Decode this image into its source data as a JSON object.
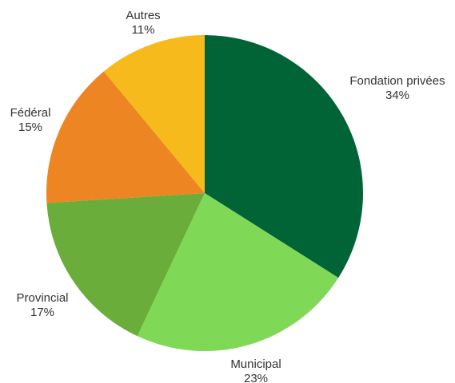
{
  "chart_data": {
    "type": "pie",
    "slices": [
      {
        "label": "Fondation privées",
        "value": 34,
        "value_label": "34%",
        "color": "#006437"
      },
      {
        "label": "Municipal",
        "value": 23,
        "value_label": "23%",
        "color": "#7fd957"
      },
      {
        "label": "Provincial",
        "value": 17,
        "value_label": "17%",
        "color": "#6aad3b"
      },
      {
        "label": "Fédéral",
        "value": 15,
        "value_label": "15%",
        "color": "#ec8522"
      },
      {
        "label": "Autres",
        "value": 11,
        "value_label": "11%",
        "color": "#f6ba1d"
      }
    ],
    "start": "12 o'clock",
    "direction": "clockwise",
    "legend": "none"
  }
}
